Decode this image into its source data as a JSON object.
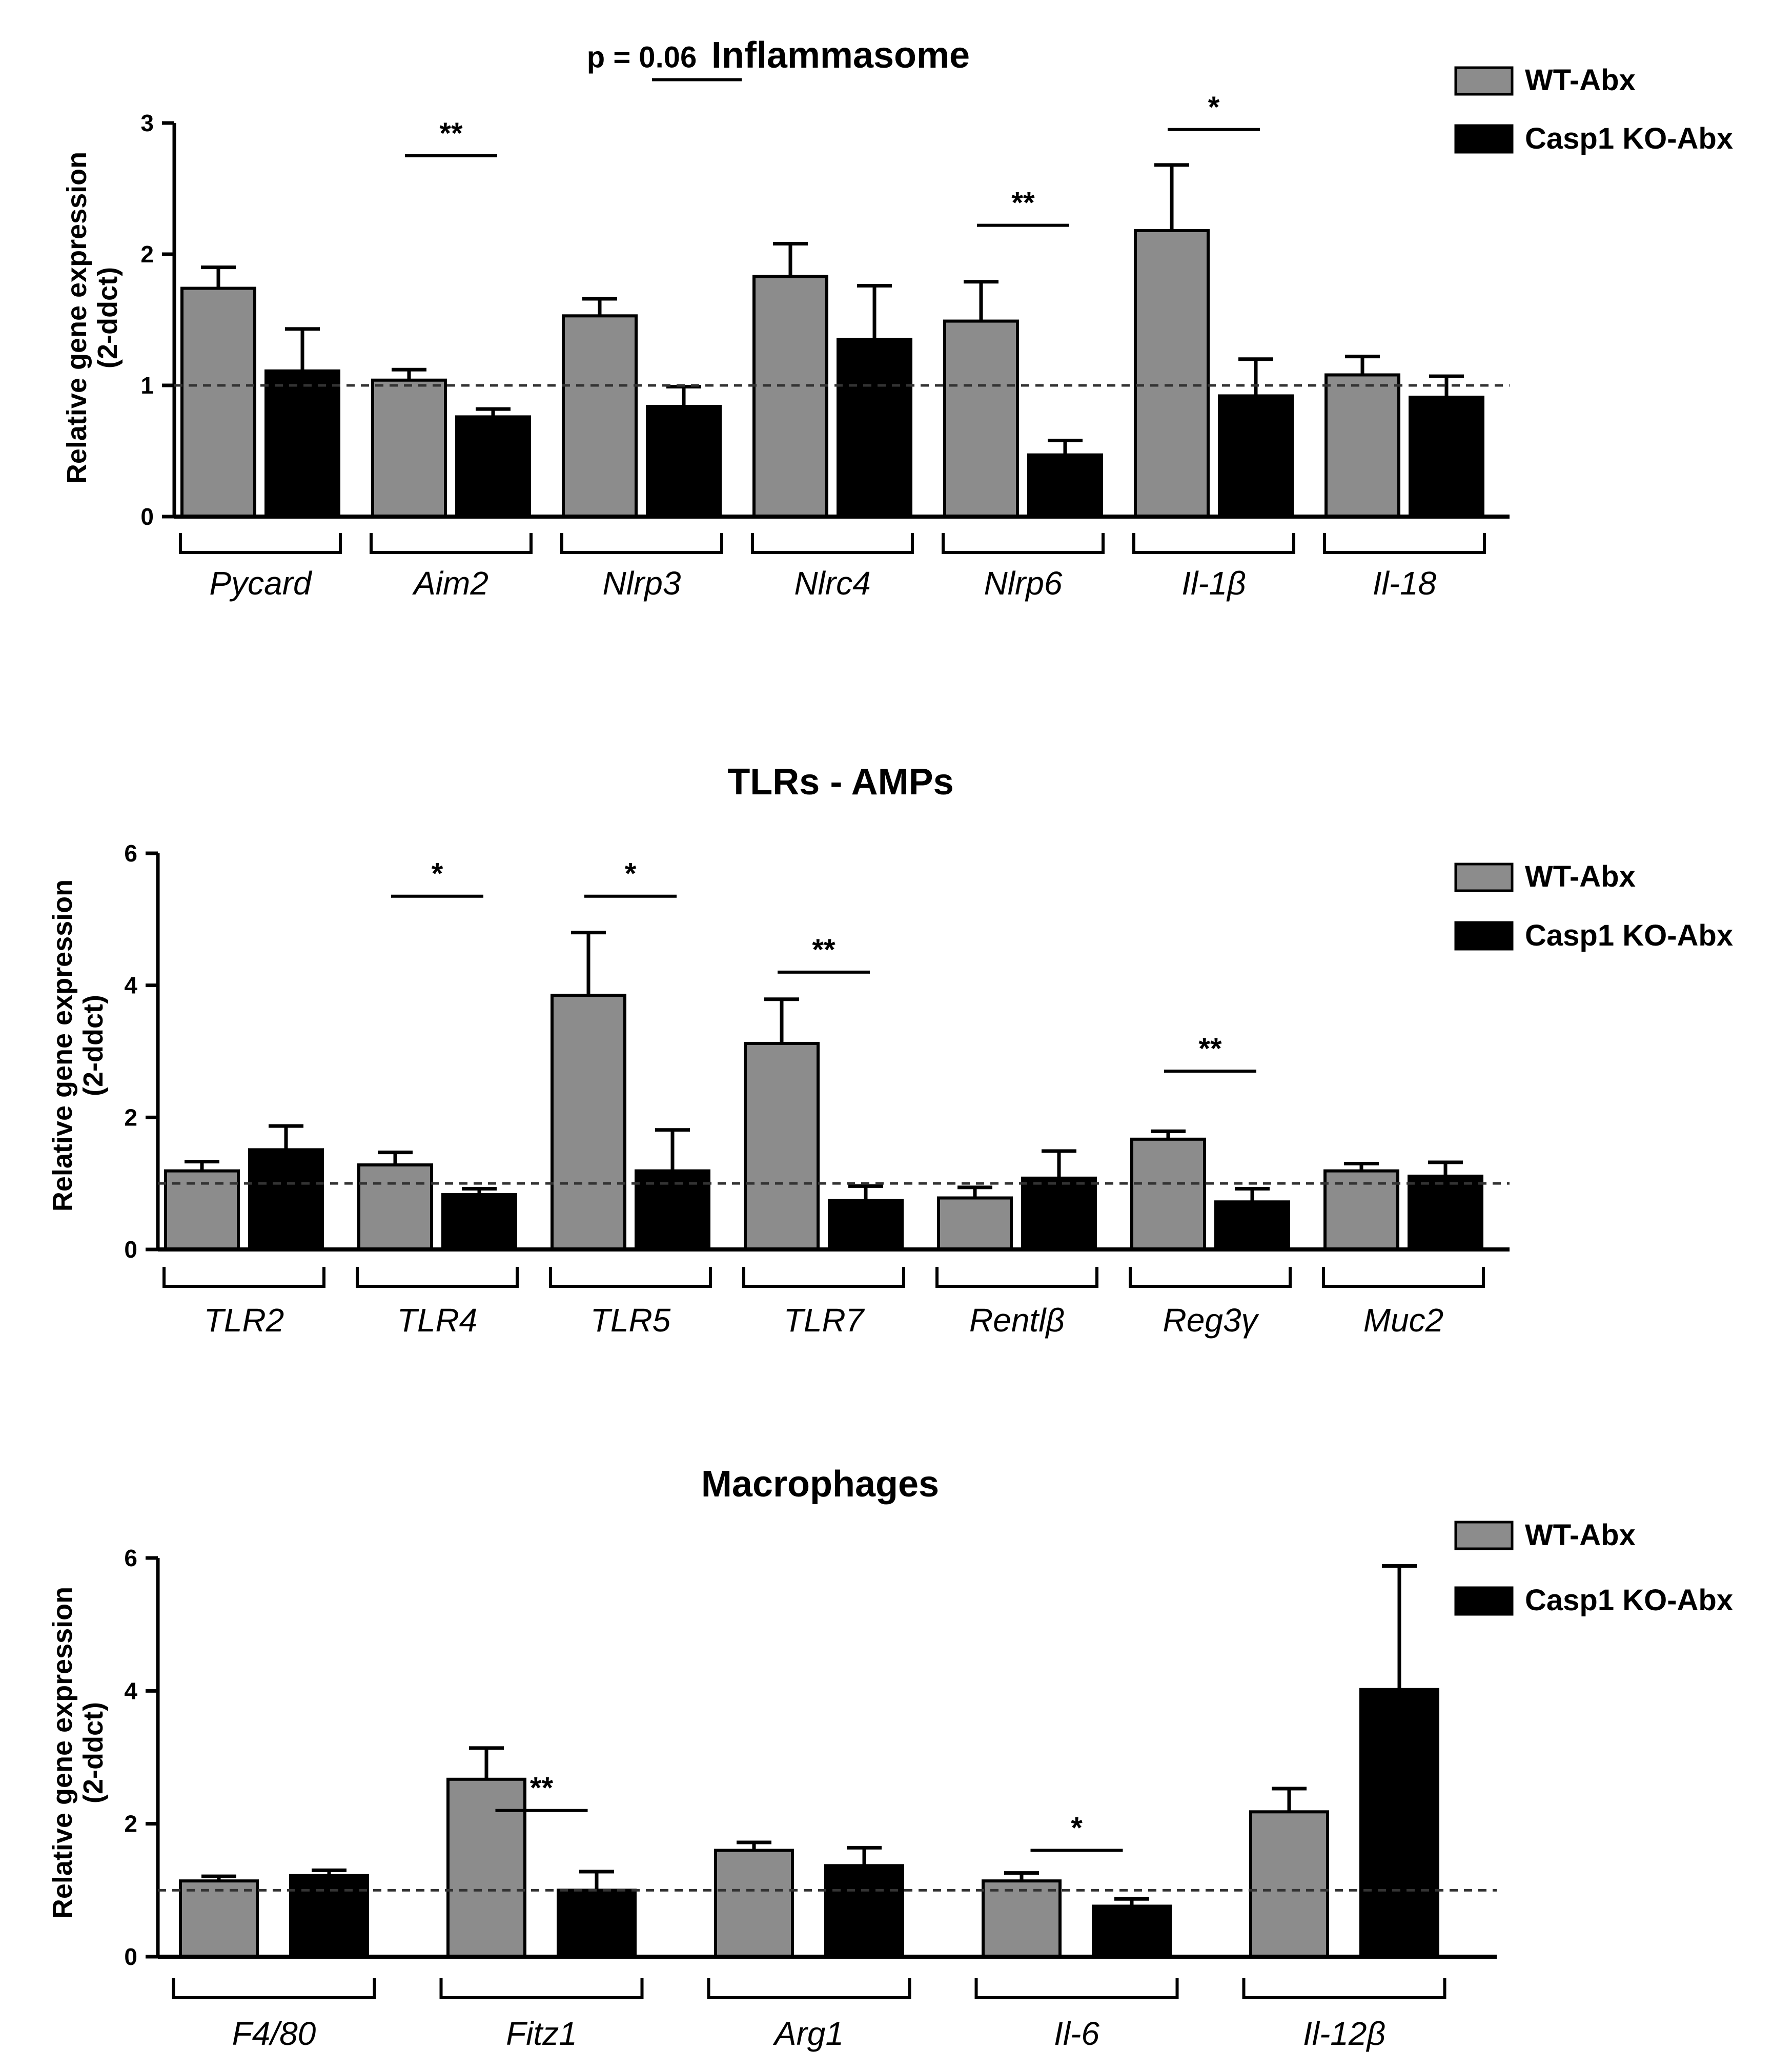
{
  "legend": {
    "series": [
      "WT-Abx",
      "Casp1 KO-Abx"
    ]
  },
  "colors": {
    "wt": "#8c8c8c",
    "ko": "#000000",
    "axis": "#000000",
    "baseline": "#333333"
  },
  "chart_data": [
    {
      "type": "bar",
      "title": "Inflammasome",
      "ylabel": [
        "Relative gene expression",
        "(2-ddct)"
      ],
      "ylim": [
        0,
        3
      ],
      "yticks": [
        0,
        1,
        2,
        3
      ],
      "baseline": 1,
      "categories": [
        "Pycard",
        "Aim2",
        "Nlrp3",
        "Nlrc4",
        "Nlrp6",
        "Il-1β",
        "Il-18"
      ],
      "series": [
        {
          "name": "WT-Abx",
          "values": [
            1.74,
            1.04,
            1.53,
            1.83,
            1.49,
            2.18,
            1.08
          ],
          "errors": [
            0.16,
            0.08,
            0.13,
            0.25,
            0.3,
            0.5,
            0.14
          ]
        },
        {
          "name": "Casp1 KO-Abx",
          "values": [
            1.11,
            0.76,
            0.84,
            1.35,
            0.47,
            0.92,
            0.91
          ],
          "errors": [
            0.32,
            0.06,
            0.15,
            0.41,
            0.11,
            0.28,
            0.16
          ]
        }
      ],
      "annotations": [
        {
          "group": 1,
          "text": "**"
        },
        {
          "group": 2,
          "text": "p = 0.06"
        },
        {
          "group": 4,
          "text": "**"
        },
        {
          "group": 5,
          "text": "*"
        }
      ]
    },
    {
      "type": "bar",
      "title": "TLRs - AMPs",
      "ylabel": [
        "Relative gene expression",
        "(2-ddct)"
      ],
      "ylim": [
        0,
        6
      ],
      "yticks": [
        0,
        2,
        4,
        6
      ],
      "baseline": 1,
      "categories": [
        "TLR2",
        "TLR4",
        "TLR5",
        "TLR7",
        "Rentlβ",
        "Reg3γ",
        "Muc2"
      ],
      "series": [
        {
          "name": "WT-Abx",
          "values": [
            1.19,
            1.28,
            3.85,
            3.12,
            0.78,
            1.67,
            1.19
          ],
          "errors": [
            0.14,
            0.19,
            0.95,
            0.67,
            0.16,
            0.12,
            0.11
          ]
        },
        {
          "name": "Casp1 KO-Abx",
          "values": [
            1.51,
            0.83,
            1.19,
            0.74,
            1.08,
            0.72,
            1.11
          ],
          "errors": [
            0.36,
            0.09,
            0.62,
            0.22,
            0.41,
            0.2,
            0.21
          ]
        }
      ],
      "annotations": [
        {
          "group": 1,
          "text": "*"
        },
        {
          "group": 2,
          "text": "*"
        },
        {
          "group": 3,
          "text": "**"
        },
        {
          "group": 5,
          "text": "**"
        }
      ]
    },
    {
      "type": "bar",
      "title": "Macrophages",
      "ylabel": [
        "Relative gene expression",
        "(2-ddct)"
      ],
      "ylim": [
        0,
        6
      ],
      "yticks": [
        0,
        2,
        4,
        6
      ],
      "baseline": 1,
      "categories": [
        "F4/80",
        "Fitz1",
        "Arg1",
        "Il-6",
        "Il-12β"
      ],
      "series": [
        {
          "name": "WT-Abx",
          "values": [
            1.14,
            2.67,
            1.6,
            1.14,
            2.18
          ],
          "errors": [
            0.07,
            0.47,
            0.12,
            0.12,
            0.35
          ]
        },
        {
          "name": "Casp1 KO-Abx",
          "values": [
            1.22,
            1.0,
            1.37,
            0.76,
            4.02
          ],
          "errors": [
            0.08,
            0.28,
            0.27,
            0.11,
            1.86
          ]
        }
      ],
      "annotations": [
        {
          "group": 1,
          "text": "**"
        },
        {
          "group": 3,
          "text": "*"
        }
      ]
    }
  ]
}
